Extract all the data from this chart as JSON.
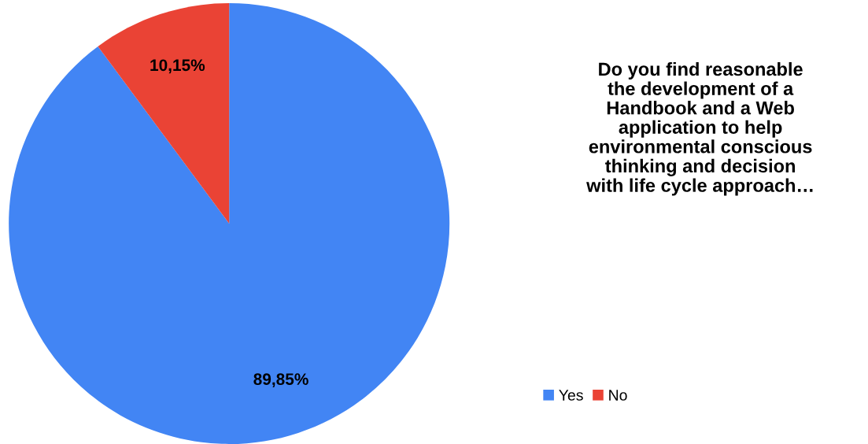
{
  "chart_data": {
    "type": "pie",
    "title": "Do you find reasonable\nthe development of a\nHandbook and a Web\napplication to help\nenvironmental conscious\nthinking and decision\nwith life cycle approach…",
    "categories": [
      "Yes",
      "No"
    ],
    "values": [
      89.85,
      10.15
    ],
    "colors": [
      "#4285f4",
      "#ea4335"
    ],
    "value_labels": [
      "89,85%",
      "10,15%"
    ],
    "legend": "bottom right"
  }
}
